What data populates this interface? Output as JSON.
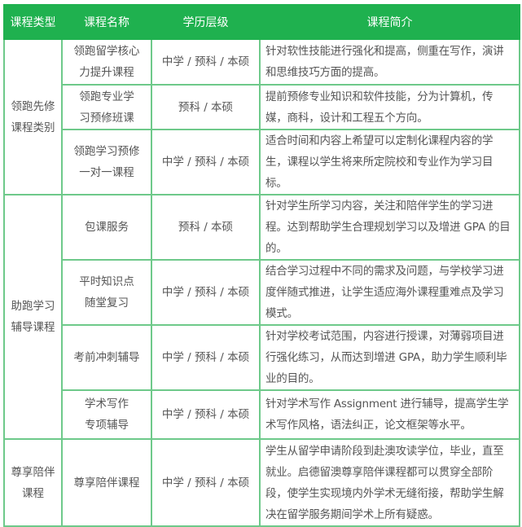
{
  "colors": {
    "header_bg": "#1fb14f",
    "border": "#6ec98a",
    "text": "#555555"
  },
  "headers": [
    "课程类型",
    "课程名称",
    "学历层级",
    "课程简介"
  ],
  "groups": [
    {
      "type": "领跑先修\n课程类别",
      "rows": [
        {
          "name": "领跑留学核心\n力提升课程",
          "level": "中学 / 预科 / 本硕",
          "desc": "针对软性技能进行强化和提高，侧重在写作，演讲和思维技巧方面的提高。"
        },
        {
          "name": "领跑专业学\n习预修班课",
          "level": "预科 / 本硕",
          "desc": "提前预修专业知识和软件技能，分为计算机，传媒，商科，设计和工程五个方向。"
        },
        {
          "name": "领跑学习预修\n一对一课程",
          "level": "中学 / 预科 / 本硕",
          "desc": "适合时间和内容上希望可以定制化课程内容的学生，课程以学生将来所定院校和专业作为学习目标。"
        }
      ]
    },
    {
      "type": "助跑学习\n辅导课程",
      "rows": [
        {
          "name": "包课服务",
          "level": "预科 / 本硕",
          "desc": "针对学生所学习内容，关注和陪伴学生的学习进程。达到帮助学生合理规划学习以及增进 GPA 的目的。"
        },
        {
          "name": "平时知识点\n随堂复习",
          "level": "中学 / 预科 / 本硕",
          "desc": "结合学习过程中不同的需求及问题，与学校学习进度伴随式推进，让学生适应海外课程重难点及学习模式。"
        },
        {
          "name": "考前冲刺辅导",
          "level": "中学 / 预科 / 本硕",
          "desc": "针对学校考试范围，内容进行授课，对薄弱项目进行强化练习，从而达到增进 GPA，助力学生顺利毕业的目的。"
        },
        {
          "name": "学术写作\n专项辅导",
          "level": "中学 / 预科 / 本硕",
          "desc": "针对学术写作 Assignment 进行辅导，提高学生学术写作风格，语法纠正，论文框架等水平。"
        }
      ]
    },
    {
      "type": "尊享陪伴\n课程",
      "rows": [
        {
          "name": "尊享陪伴课程",
          "level": "中学 / 预科 / 本硕",
          "desc": "学生从留学申请阶段到赴澳攻读学位，毕业，直至就业。启德留澳尊享陪伴课程都可以贯穿全部阶段，使学生实现境内外学术无缝衔接，帮助学生解决在留学服务期间学术上所有疑惑。"
        }
      ]
    }
  ]
}
